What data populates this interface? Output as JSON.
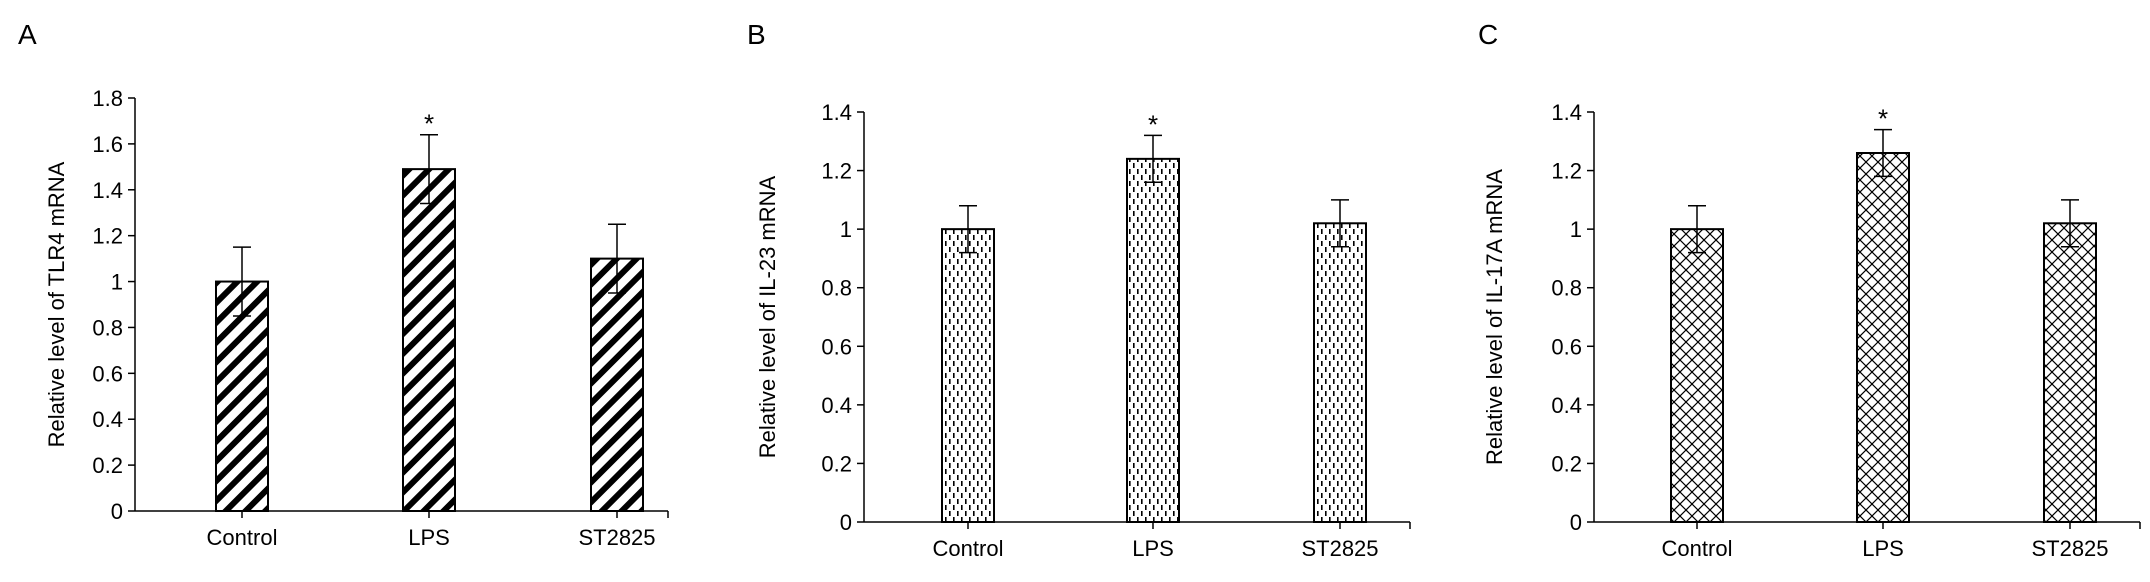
{
  "chart_data": [
    {
      "type": "bar",
      "panel": "A",
      "categories": [
        "Control",
        "LPS",
        "ST2825"
      ],
      "values": [
        1.0,
        1.49,
        1.1
      ],
      "errors": [
        0.15,
        0.15,
        0.15
      ],
      "significance": [
        "",
        "*",
        ""
      ],
      "ylabel": "Relative level of TLR4 mRNA",
      "ylim": [
        0,
        1.8
      ],
      "yticks": [
        "0",
        "0.2",
        "0.4",
        "0.6",
        "0.8",
        "1",
        "1.2",
        "1.4",
        "1.6",
        "1.8"
      ],
      "pattern": "diagonal-stripes",
      "grid": false
    },
    {
      "type": "bar",
      "panel": "B",
      "categories": [
        "Control",
        "LPS",
        "ST2825"
      ],
      "values": [
        1.0,
        1.24,
        1.02
      ],
      "errors": [
        0.08,
        0.08,
        0.08
      ],
      "significance": [
        "",
        "*",
        ""
      ],
      "ylabel": "Relative level of IL-23 mRNA",
      "ylim": [
        0,
        1.4
      ],
      "yticks": [
        "0",
        "0.2",
        "0.4",
        "0.6",
        "0.8",
        "1",
        "1.2",
        "1.4"
      ],
      "pattern": "dashed-vertical",
      "grid": false
    },
    {
      "type": "bar",
      "panel": "C",
      "categories": [
        "Control",
        "LPS",
        "ST2825"
      ],
      "values": [
        1.0,
        1.26,
        1.02
      ],
      "errors": [
        0.08,
        0.08,
        0.08
      ],
      "significance": [
        "",
        "*",
        ""
      ],
      "ylabel": "Relative level of IL-17A mRNA",
      "ylim": [
        0,
        1.4
      ],
      "yticks": [
        "0",
        "0.2",
        "0.4",
        "0.6",
        "0.8",
        "1",
        "1.2",
        "1.4"
      ],
      "pattern": "crosshatch",
      "grid": false
    }
  ]
}
